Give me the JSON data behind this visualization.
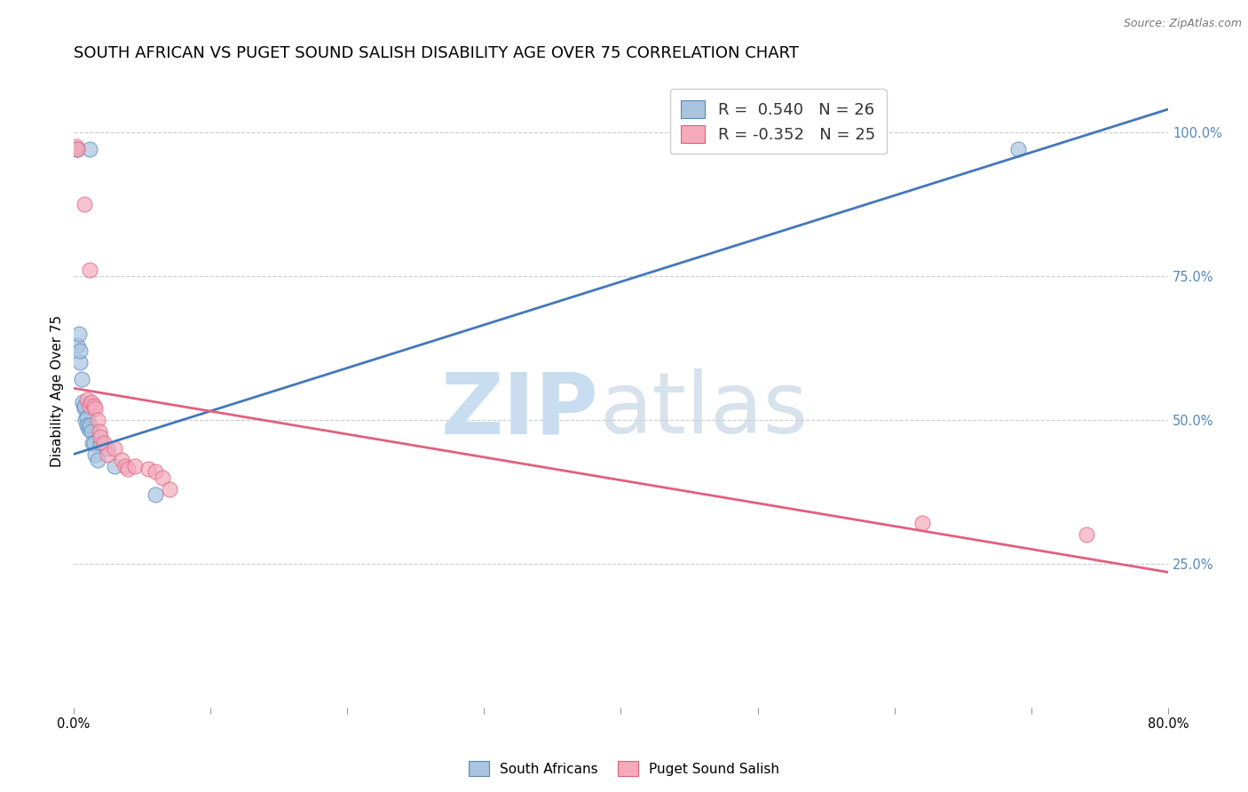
{
  "title": "SOUTH AFRICAN VS PUGET SOUND SALISH DISABILITY AGE OVER 75 CORRELATION CHART",
  "source": "Source: ZipAtlas.com",
  "ylabel": "Disability Age Over 75",
  "xlim": [
    0.0,
    0.8
  ],
  "ylim": [
    0.0,
    1.1
  ],
  "blue_r": 0.54,
  "blue_n": 26,
  "pink_r": -0.352,
  "pink_n": 25,
  "blue_color": "#A8C4E0",
  "pink_color": "#F4AABB",
  "blue_edge_color": "#5588BB",
  "pink_edge_color": "#E06080",
  "blue_line_color": "#4477BB",
  "pink_line_color": "#E06080",
  "blue_scatter": [
    [
      0.002,
      0.97
    ],
    [
      0.003,
      0.97
    ],
    [
      0.012,
      0.97
    ],
    [
      0.003,
      0.63
    ],
    [
      0.004,
      0.65
    ],
    [
      0.005,
      0.6
    ],
    [
      0.005,
      0.62
    ],
    [
      0.006,
      0.57
    ],
    [
      0.007,
      0.53
    ],
    [
      0.008,
      0.52
    ],
    [
      0.008,
      0.525
    ],
    [
      0.009,
      0.5
    ],
    [
      0.01,
      0.505
    ],
    [
      0.01,
      0.49
    ],
    [
      0.011,
      0.485
    ],
    [
      0.012,
      0.49
    ],
    [
      0.013,
      0.48
    ],
    [
      0.014,
      0.46
    ],
    [
      0.015,
      0.46
    ],
    [
      0.016,
      0.44
    ],
    [
      0.018,
      0.43
    ],
    [
      0.02,
      0.46
    ],
    [
      0.025,
      0.45
    ],
    [
      0.03,
      0.42
    ],
    [
      0.06,
      0.37
    ],
    [
      0.69,
      0.97
    ]
  ],
  "pink_scatter": [
    [
      0.002,
      0.975
    ],
    [
      0.003,
      0.97
    ],
    [
      0.008,
      0.875
    ],
    [
      0.012,
      0.76
    ],
    [
      0.01,
      0.535
    ],
    [
      0.012,
      0.525
    ],
    [
      0.013,
      0.53
    ],
    [
      0.015,
      0.525
    ],
    [
      0.016,
      0.52
    ],
    [
      0.018,
      0.5
    ],
    [
      0.019,
      0.48
    ],
    [
      0.02,
      0.47
    ],
    [
      0.022,
      0.46
    ],
    [
      0.025,
      0.44
    ],
    [
      0.03,
      0.45
    ],
    [
      0.035,
      0.43
    ],
    [
      0.038,
      0.42
    ],
    [
      0.04,
      0.415
    ],
    [
      0.045,
      0.42
    ],
    [
      0.055,
      0.415
    ],
    [
      0.06,
      0.41
    ],
    [
      0.065,
      0.4
    ],
    [
      0.07,
      0.38
    ],
    [
      0.62,
      0.32
    ],
    [
      0.74,
      0.3
    ]
  ],
  "blue_line_x": [
    0.0,
    0.8
  ],
  "blue_line_y": [
    0.44,
    1.04
  ],
  "pink_line_x": [
    0.0,
    0.8
  ],
  "pink_line_y": [
    0.555,
    0.235
  ],
  "ytick_values": [
    0.25,
    0.5,
    0.75,
    1.0
  ],
  "ytick_labels": [
    "25.0%",
    "50.0%",
    "75.0%",
    "100.0%"
  ],
  "xtick_values": [
    0.0,
    0.1,
    0.2,
    0.3,
    0.4,
    0.5,
    0.6,
    0.7,
    0.8
  ],
  "xtick_labels": [
    "0.0%",
    "",
    "",
    "",
    "",
    "",
    "",
    "",
    "80.0%"
  ],
  "title_fontsize": 13,
  "axis_label_fontsize": 11,
  "tick_fontsize": 10.5,
  "right_tick_color": "#5588BB",
  "legend_fontsize": 13
}
